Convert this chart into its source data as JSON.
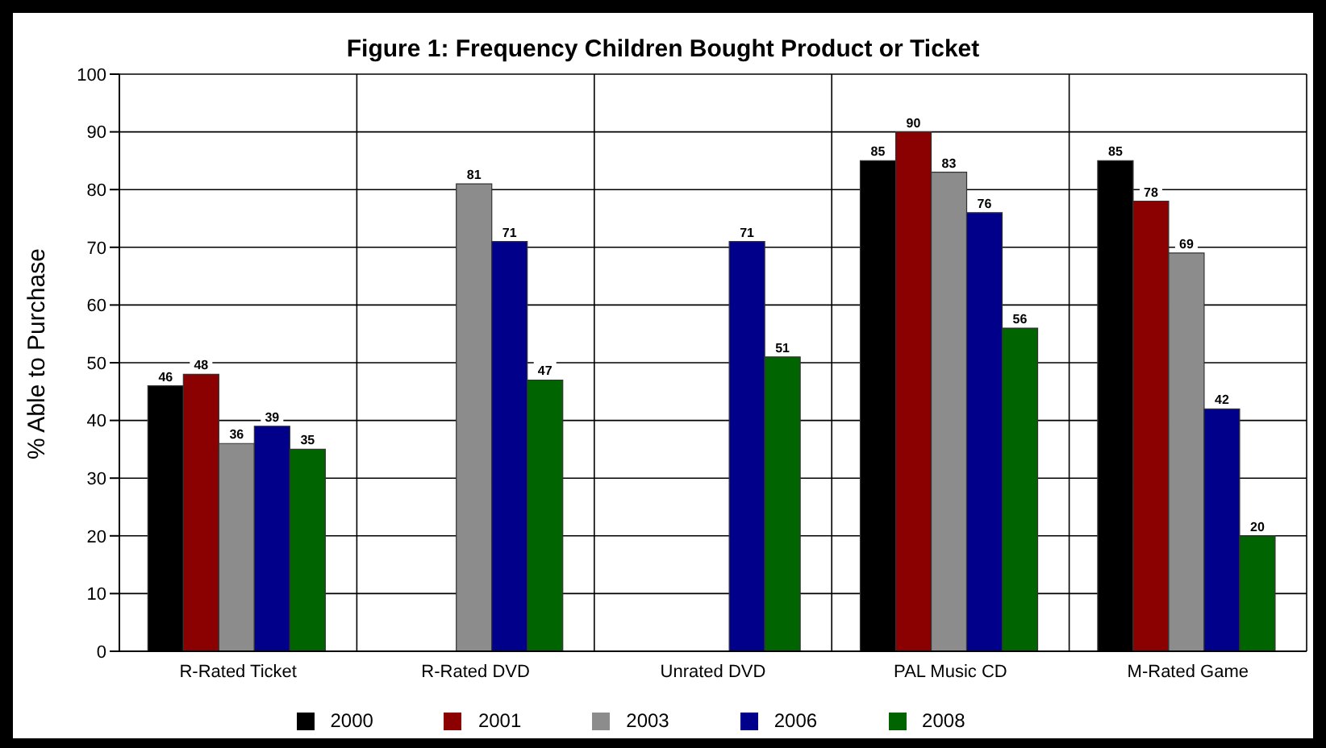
{
  "chart_data": {
    "type": "bar",
    "title": "Figure 1:  Frequency Children Bought Product or Ticket",
    "ylabel": "% Able to Purchase",
    "categories": [
      "R-Rated Ticket",
      "R-Rated DVD",
      "Unrated DVD",
      "PAL Music CD",
      "M-Rated Game"
    ],
    "series": [
      {
        "name": "2000",
        "color": "#000000",
        "values": [
          46,
          null,
          null,
          85,
          85
        ]
      },
      {
        "name": "2001",
        "color": "#8b0000",
        "values": [
          48,
          null,
          null,
          90,
          78
        ]
      },
      {
        "name": "2003",
        "color": "#8c8c8c",
        "values": [
          36,
          81,
          null,
          83,
          69
        ]
      },
      {
        "name": "2006",
        "color": "#00008b",
        "values": [
          39,
          71,
          71,
          76,
          42
        ]
      },
      {
        "name": "2008",
        "color": "#006400",
        "values": [
          35,
          47,
          51,
          56,
          20
        ]
      }
    ],
    "ylim": [
      0,
      100
    ],
    "yticks": [
      0,
      10,
      20,
      30,
      40,
      50,
      60,
      70,
      80,
      90,
      100
    ],
    "grid": true,
    "legend": "bottom",
    "data_labels": true
  }
}
